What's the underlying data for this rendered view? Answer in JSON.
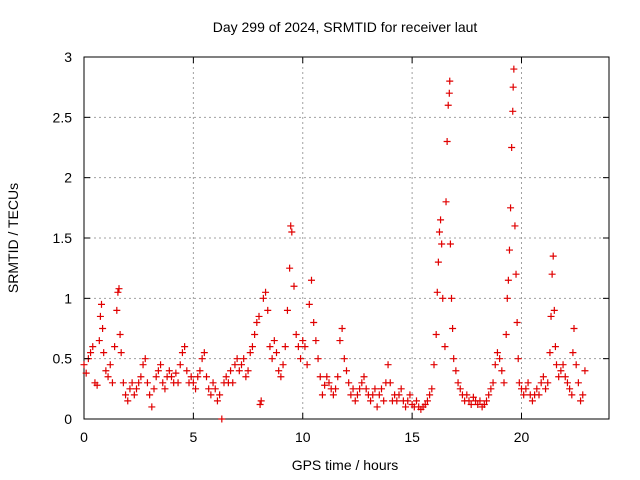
{
  "chart_data": {
    "type": "scatter",
    "title": "Day 299 of 2024, SRMTID for receiver laut",
    "xlabel": "GPS time / hours",
    "ylabel": "SRMTID / TECUs",
    "xlim": [
      0,
      24
    ],
    "ylim": [
      0,
      3
    ],
    "xticks": [
      0,
      5,
      10,
      15,
      20
    ],
    "xtick_labels": [
      "0",
      "5",
      "10",
      "15",
      "20"
    ],
    "yticks": [
      0,
      0.5,
      1,
      1.5,
      2,
      2.5,
      3
    ],
    "ytick_labels": [
      "0",
      "0.5",
      "1",
      "1.5",
      "2",
      "2.5",
      "3"
    ],
    "grid": true,
    "marker": "+",
    "series_color": "#e00000",
    "series": [
      {
        "name": "SRMTID",
        "points": [
          [
            0.0,
            0.45
          ],
          [
            0.1,
            0.38
          ],
          [
            0.2,
            0.5
          ],
          [
            0.3,
            0.55
          ],
          [
            0.4,
            0.6
          ],
          [
            0.5,
            0.3
          ],
          [
            0.6,
            0.28
          ],
          [
            0.7,
            0.65
          ],
          [
            0.75,
            0.85
          ],
          [
            0.8,
            0.95
          ],
          [
            0.85,
            0.75
          ],
          [
            0.9,
            0.55
          ],
          [
            1.0,
            0.4
          ],
          [
            1.1,
            0.35
          ],
          [
            1.2,
            0.45
          ],
          [
            1.3,
            0.3
          ],
          [
            1.4,
            0.6
          ],
          [
            1.5,
            0.9
          ],
          [
            1.55,
            1.05
          ],
          [
            1.6,
            1.08
          ],
          [
            1.65,
            0.7
          ],
          [
            1.7,
            0.55
          ],
          [
            1.8,
            0.3
          ],
          [
            1.9,
            0.2
          ],
          [
            2.0,
            0.15
          ],
          [
            2.1,
            0.25
          ],
          [
            2.2,
            0.3
          ],
          [
            2.3,
            0.2
          ],
          [
            2.4,
            0.25
          ],
          [
            2.5,
            0.3
          ],
          [
            2.6,
            0.35
          ],
          [
            2.7,
            0.45
          ],
          [
            2.8,
            0.5
          ],
          [
            2.9,
            0.3
          ],
          [
            3.0,
            0.2
          ],
          [
            3.1,
            0.1
          ],
          [
            3.2,
            0.25
          ],
          [
            3.3,
            0.35
          ],
          [
            3.4,
            0.4
          ],
          [
            3.5,
            0.45
          ],
          [
            3.6,
            0.3
          ],
          [
            3.7,
            0.25
          ],
          [
            3.8,
            0.35
          ],
          [
            3.9,
            0.4
          ],
          [
            4.0,
            0.35
          ],
          [
            4.1,
            0.3
          ],
          [
            4.2,
            0.38
          ],
          [
            4.3,
            0.3
          ],
          [
            4.4,
            0.45
          ],
          [
            4.5,
            0.55
          ],
          [
            4.6,
            0.6
          ],
          [
            4.7,
            0.4
          ],
          [
            4.8,
            0.3
          ],
          [
            4.9,
            0.35
          ],
          [
            5.0,
            0.3
          ],
          [
            5.1,
            0.25
          ],
          [
            5.2,
            0.35
          ],
          [
            5.3,
            0.4
          ],
          [
            5.4,
            0.5
          ],
          [
            5.5,
            0.55
          ],
          [
            5.6,
            0.35
          ],
          [
            5.7,
            0.25
          ],
          [
            5.8,
            0.2
          ],
          [
            5.9,
            0.3
          ],
          [
            6.0,
            0.25
          ],
          [
            6.1,
            0.15
          ],
          [
            6.2,
            0.2
          ],
          [
            6.3,
            0.0
          ],
          [
            6.4,
            0.3
          ],
          [
            6.5,
            0.35
          ],
          [
            6.6,
            0.3
          ],
          [
            6.7,
            0.4
          ],
          [
            6.8,
            0.3
          ],
          [
            6.9,
            0.45
          ],
          [
            7.0,
            0.5
          ],
          [
            7.1,
            0.4
          ],
          [
            7.2,
            0.45
          ],
          [
            7.3,
            0.5
          ],
          [
            7.4,
            0.35
          ],
          [
            7.5,
            0.4
          ],
          [
            7.6,
            0.55
          ],
          [
            7.7,
            0.6
          ],
          [
            7.8,
            0.7
          ],
          [
            7.9,
            0.8
          ],
          [
            8.0,
            0.85
          ],
          [
            8.05,
            0.12
          ],
          [
            8.1,
            0.15
          ],
          [
            8.2,
            1.0
          ],
          [
            8.3,
            1.05
          ],
          [
            8.4,
            0.9
          ],
          [
            8.5,
            0.6
          ],
          [
            8.6,
            0.5
          ],
          [
            8.7,
            0.65
          ],
          [
            8.8,
            0.55
          ],
          [
            8.9,
            0.4
          ],
          [
            9.0,
            0.35
          ],
          [
            9.1,
            0.45
          ],
          [
            9.2,
            0.6
          ],
          [
            9.3,
            0.9
          ],
          [
            9.4,
            1.25
          ],
          [
            9.45,
            1.6
          ],
          [
            9.5,
            1.55
          ],
          [
            9.6,
            1.1
          ],
          [
            9.7,
            0.7
          ],
          [
            9.8,
            0.6
          ],
          [
            9.9,
            0.5
          ],
          [
            10.0,
            0.65
          ],
          [
            10.1,
            0.6
          ],
          [
            10.2,
            0.45
          ],
          [
            10.3,
            0.95
          ],
          [
            10.4,
            1.15
          ],
          [
            10.5,
            0.8
          ],
          [
            10.6,
            0.65
          ],
          [
            10.7,
            0.5
          ],
          [
            10.8,
            0.35
          ],
          [
            10.9,
            0.2
          ],
          [
            11.0,
            0.28
          ],
          [
            11.1,
            0.35
          ],
          [
            11.2,
            0.3
          ],
          [
            11.3,
            0.25
          ],
          [
            11.4,
            0.2
          ],
          [
            11.5,
            0.25
          ],
          [
            11.6,
            0.35
          ],
          [
            11.7,
            0.65
          ],
          [
            11.8,
            0.75
          ],
          [
            11.9,
            0.5
          ],
          [
            12.0,
            0.4
          ],
          [
            12.1,
            0.3
          ],
          [
            12.2,
            0.2
          ],
          [
            12.3,
            0.25
          ],
          [
            12.4,
            0.15
          ],
          [
            12.5,
            0.2
          ],
          [
            12.6,
            0.25
          ],
          [
            12.7,
            0.3
          ],
          [
            12.8,
            0.35
          ],
          [
            12.9,
            0.25
          ],
          [
            13.0,
            0.2
          ],
          [
            13.1,
            0.15
          ],
          [
            13.2,
            0.2
          ],
          [
            13.3,
            0.25
          ],
          [
            13.4,
            0.1
          ],
          [
            13.5,
            0.2
          ],
          [
            13.6,
            0.25
          ],
          [
            13.7,
            0.15
          ],
          [
            13.8,
            0.3
          ],
          [
            13.9,
            0.45
          ],
          [
            14.0,
            0.3
          ],
          [
            14.1,
            0.15
          ],
          [
            14.2,
            0.2
          ],
          [
            14.3,
            0.15
          ],
          [
            14.4,
            0.2
          ],
          [
            14.5,
            0.25
          ],
          [
            14.6,
            0.15
          ],
          [
            14.7,
            0.1
          ],
          [
            14.8,
            0.15
          ],
          [
            14.9,
            0.2
          ],
          [
            15.0,
            0.12
          ],
          [
            15.1,
            0.1
          ],
          [
            15.2,
            0.15
          ],
          [
            15.3,
            0.1
          ],
          [
            15.4,
            0.08
          ],
          [
            15.5,
            0.1
          ],
          [
            15.6,
            0.12
          ],
          [
            15.7,
            0.15
          ],
          [
            15.8,
            0.2
          ],
          [
            15.9,
            0.25
          ],
          [
            16.0,
            0.45
          ],
          [
            16.1,
            0.7
          ],
          [
            16.15,
            1.05
          ],
          [
            16.2,
            1.3
          ],
          [
            16.25,
            1.55
          ],
          [
            16.3,
            1.65
          ],
          [
            16.35,
            1.45
          ],
          [
            16.4,
            1.0
          ],
          [
            16.5,
            0.6
          ],
          [
            16.55,
            1.8
          ],
          [
            16.6,
            2.3
          ],
          [
            16.65,
            2.6
          ],
          [
            16.7,
            2.7
          ],
          [
            16.72,
            2.8
          ],
          [
            16.75,
            1.45
          ],
          [
            16.8,
            1.0
          ],
          [
            16.85,
            0.75
          ],
          [
            16.9,
            0.5
          ],
          [
            17.0,
            0.4
          ],
          [
            17.1,
            0.3
          ],
          [
            17.2,
            0.25
          ],
          [
            17.3,
            0.2
          ],
          [
            17.4,
            0.15
          ],
          [
            17.5,
            0.2
          ],
          [
            17.6,
            0.15
          ],
          [
            17.7,
            0.12
          ],
          [
            17.8,
            0.18
          ],
          [
            17.9,
            0.15
          ],
          [
            18.0,
            0.12
          ],
          [
            18.1,
            0.15
          ],
          [
            18.2,
            0.1
          ],
          [
            18.3,
            0.12
          ],
          [
            18.4,
            0.15
          ],
          [
            18.5,
            0.2
          ],
          [
            18.6,
            0.25
          ],
          [
            18.7,
            0.3
          ],
          [
            18.8,
            0.45
          ],
          [
            18.9,
            0.55
          ],
          [
            19.0,
            0.5
          ],
          [
            19.1,
            0.4
          ],
          [
            19.2,
            0.3
          ],
          [
            19.3,
            0.7
          ],
          [
            19.35,
            1.0
          ],
          [
            19.4,
            1.15
          ],
          [
            19.45,
            1.4
          ],
          [
            19.5,
            1.75
          ],
          [
            19.55,
            2.25
          ],
          [
            19.6,
            2.55
          ],
          [
            19.62,
            2.75
          ],
          [
            19.65,
            2.9
          ],
          [
            19.7,
            1.6
          ],
          [
            19.75,
            1.2
          ],
          [
            19.8,
            0.8
          ],
          [
            19.85,
            0.5
          ],
          [
            19.9,
            0.3
          ],
          [
            20.0,
            0.25
          ],
          [
            20.1,
            0.2
          ],
          [
            20.2,
            0.25
          ],
          [
            20.3,
            0.3
          ],
          [
            20.4,
            0.2
          ],
          [
            20.5,
            0.15
          ],
          [
            20.6,
            0.2
          ],
          [
            20.7,
            0.25
          ],
          [
            20.8,
            0.2
          ],
          [
            20.9,
            0.3
          ],
          [
            21.0,
            0.35
          ],
          [
            21.1,
            0.25
          ],
          [
            21.2,
            0.3
          ],
          [
            21.3,
            0.55
          ],
          [
            21.35,
            0.85
          ],
          [
            21.4,
            1.2
          ],
          [
            21.45,
            1.35
          ],
          [
            21.5,
            0.9
          ],
          [
            21.55,
            0.6
          ],
          [
            21.6,
            0.45
          ],
          [
            21.7,
            0.35
          ],
          [
            21.8,
            0.4
          ],
          [
            21.9,
            0.45
          ],
          [
            22.0,
            0.35
          ],
          [
            22.1,
            0.3
          ],
          [
            22.2,
            0.25
          ],
          [
            22.3,
            0.2
          ],
          [
            22.35,
            0.55
          ],
          [
            22.4,
            0.75
          ],
          [
            22.5,
            0.45
          ],
          [
            22.6,
            0.3
          ],
          [
            22.7,
            0.15
          ],
          [
            22.8,
            0.2
          ],
          [
            22.9,
            0.4
          ]
        ]
      }
    ]
  }
}
